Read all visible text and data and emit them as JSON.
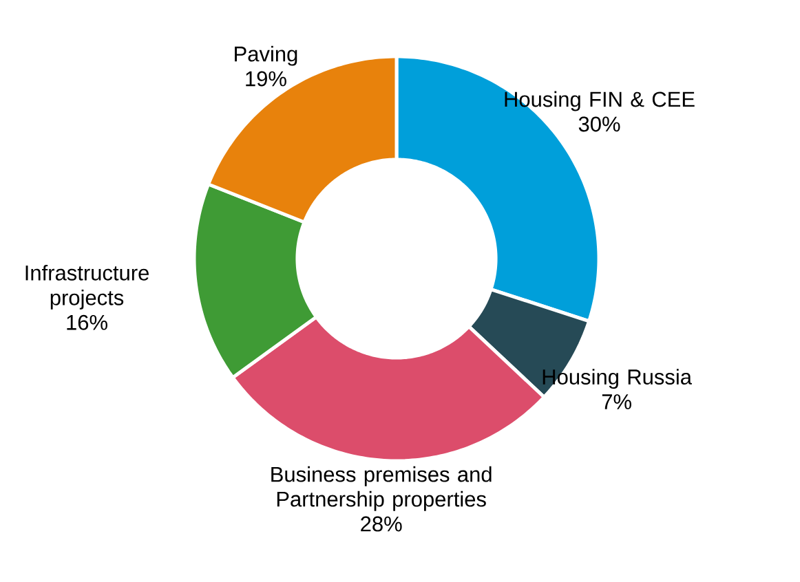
{
  "chart_data": {
    "type": "donut",
    "categories": [
      "Housing FIN & CEE",
      "Housing Russia",
      "Business premises and Partnership properties",
      "Infrastructure projects",
      "Paving"
    ],
    "values": [
      30,
      7,
      28,
      16,
      19
    ],
    "value_labels": [
      "30%",
      "7%",
      "28%",
      "16%",
      "19%"
    ],
    "colors": [
      "#009fda",
      "#264a56",
      "#dc4d6b",
      "#3f9b35",
      "#e8820c"
    ]
  }
}
